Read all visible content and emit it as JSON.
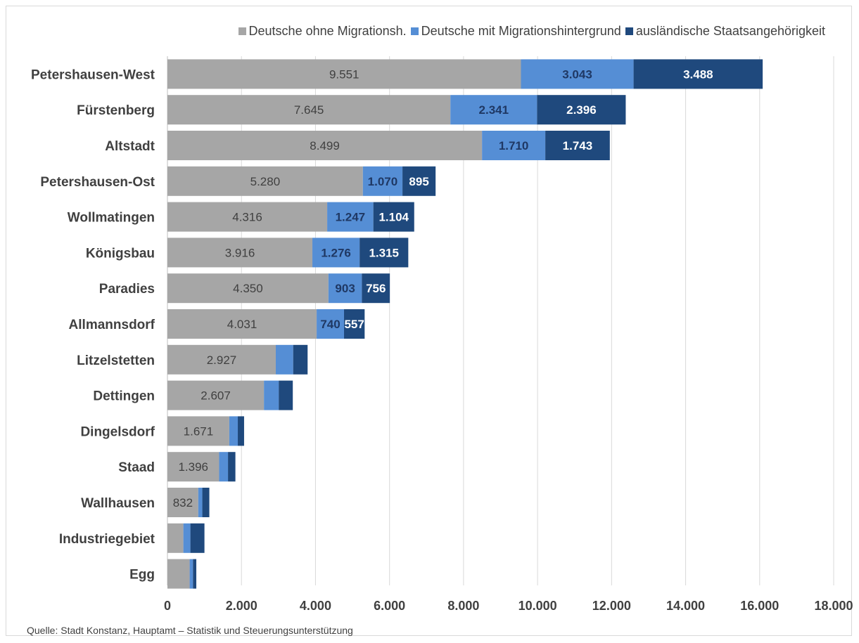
{
  "chart_data": {
    "type": "bar",
    "orientation": "horizontal",
    "stacked": true,
    "categories": [
      "Petershausen-West",
      "Fürstenberg",
      "Altstadt",
      "Petershausen-Ost",
      "Wollmatingen",
      "Königsbau",
      "Paradies",
      "Allmannsdorf",
      "Litzelstetten",
      "Dettingen",
      "Dingelsdorf",
      "Staad",
      "Wallhausen",
      "Industriegebiet",
      "Egg"
    ],
    "series": [
      {
        "name": "Deutsche ohne Migrationsh.",
        "color": "#a6a6a6",
        "label_color": "#404040",
        "label_bold": false,
        "values": [
          9551,
          7645,
          8499,
          5280,
          4316,
          3916,
          4350,
          4031,
          2927,
          2607,
          1671,
          1396,
          832,
          430,
          600
        ],
        "labels": [
          "9.551",
          "7.645",
          "8.499",
          "5.280",
          "4.316",
          "3.916",
          "4.350",
          "4.031",
          "2.927",
          "2.607",
          "1.671",
          "1.396",
          "832",
          "",
          ""
        ]
      },
      {
        "name": "Deutsche mit Migrationshintergrund",
        "color": "#558ed5",
        "label_color": "#1f3864",
        "label_bold": true,
        "values": [
          3043,
          2341,
          1710,
          1070,
          1247,
          1276,
          903,
          740,
          470,
          400,
          230,
          240,
          110,
          190,
          90
        ],
        "labels": [
          "3.043",
          "2.341",
          "1.710",
          "1.070",
          "1.247",
          "1.276",
          "903",
          "740",
          "",
          "",
          "",
          "",
          "",
          "",
          ""
        ]
      },
      {
        "name": "ausländische Staatsangehörigkeit",
        "color": "#1f497d",
        "label_color": "#ffffff",
        "label_bold": true,
        "values": [
          3488,
          2396,
          1743,
          895,
          1104,
          1315,
          756,
          557,
          390,
          380,
          170,
          200,
          190,
          380,
          90
        ],
        "labels": [
          "3.488",
          "2.396",
          "1.743",
          "895",
          "1.104",
          "1.315",
          "756",
          "557",
          "",
          "",
          "",
          "",
          "",
          "",
          ""
        ]
      }
    ],
    "x_ticks": [
      "0",
      "2.000",
      "4.000",
      "6.000",
      "8.000",
      "10.000",
      "12.000",
      "14.000",
      "16.000",
      "18.000"
    ],
    "xlim": [
      0,
      18000
    ],
    "grid": true,
    "legend_position": "top",
    "title": "",
    "xlabel": "",
    "ylabel": ""
  },
  "source_note": "Quelle: Stadt Konstanz, Hauptamt – Statistik und Steuerungsunterstützung"
}
